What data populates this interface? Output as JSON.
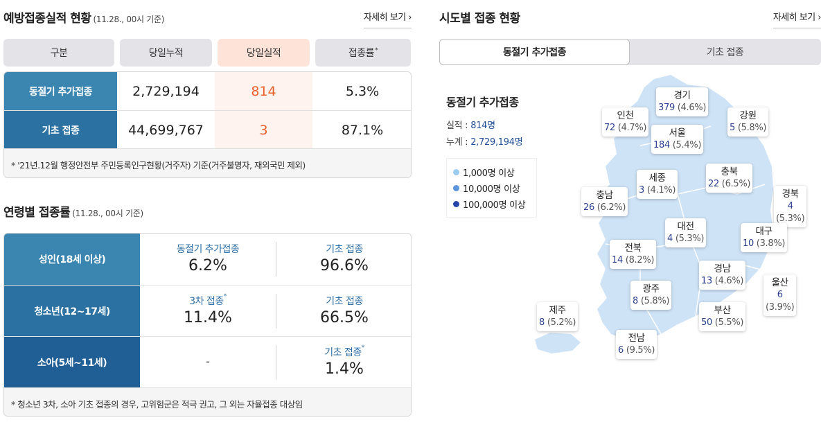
{
  "perf": {
    "title": "예방접종실적 현황",
    "basis": "(11.28., 00시 기준)",
    "more": "자세히 보기",
    "headers": {
      "category": "구분",
      "cumulative": "당일누적",
      "daily": "당일실적",
      "rate": "접종률",
      "rate_mark": "*"
    },
    "rows": [
      {
        "label": "동절기 추가접종",
        "cumulative": "2,729,194",
        "daily": "814",
        "rate": "5.3%"
      },
      {
        "label": "기초 접종",
        "cumulative": "44,699,767",
        "daily": "3",
        "rate": "87.1%"
      }
    ],
    "note": "* '21년.12월 행정안전부 주민등록인구현황(거주자) 기준(거주불명자, 재외국민 제외)"
  },
  "age": {
    "title": "연령별 접종률",
    "basis": "(11.28., 00시 기준)",
    "rows": [
      {
        "label": "성인(18세 이상)",
        "c1_key": "동절기 추가접종",
        "c1_mark": "",
        "c1_val": "6.2%",
        "c2_key": "기초 접종",
        "c2_mark": "",
        "c2_val": "96.6%"
      },
      {
        "label": "청소년(12~17세)",
        "c1_key": "3차 접종",
        "c1_mark": "*",
        "c1_val": "11.4%",
        "c2_key": "기초 접종",
        "c2_mark": "",
        "c2_val": "66.5%"
      },
      {
        "label": "소아(5세~11세)",
        "c1_dash": "-",
        "c2_key": "기초 접종",
        "c2_mark": "*",
        "c2_val": "1.4%"
      }
    ],
    "note": "* 청소년 3차, 소아 기초 접종의 경우, 고위험군은 적극 권고, 그 외는 자율접종 대상임"
  },
  "region": {
    "title": "시도별 접종 현황",
    "more": "자세히 보기",
    "tabs": [
      "동절기 추가접종",
      "기초 접종"
    ],
    "active_tab": 0,
    "info_title": "동절기 추가접종",
    "performance_label": "실적 :",
    "performance_value": "814명",
    "total_label": "누계 :",
    "total_value": "2,729,194명",
    "legend": [
      {
        "label": "1,000명 이상",
        "color": "#9ccbf0"
      },
      {
        "label": "10,000명 이상",
        "color": "#5b95dc"
      },
      {
        "label": "100,000명 이상",
        "color": "#2546a8"
      }
    ],
    "map_color": "#cfe3f7",
    "regions": [
      {
        "name": "경기",
        "count": "379",
        "pct": "(4.6%)"
      },
      {
        "name": "인천",
        "count": "72",
        "pct": "(4.7%)"
      },
      {
        "name": "강원",
        "count": "5",
        "pct": "(5.8%)"
      },
      {
        "name": "서울",
        "count": "184",
        "pct": "(5.4%)"
      },
      {
        "name": "세종",
        "count": "3",
        "pct": "(4.1%)"
      },
      {
        "name": "충북",
        "count": "22",
        "pct": "(6.5%)"
      },
      {
        "name": "충남",
        "count": "26",
        "pct": "(6.2%)"
      },
      {
        "name": "경북",
        "count": "4",
        "pct": "(5.3%)"
      },
      {
        "name": "대전",
        "count": "4",
        "pct": "(5.3%)"
      },
      {
        "name": "대구",
        "count": "10",
        "pct": "(3.8%)"
      },
      {
        "name": "전북",
        "count": "14",
        "pct": "(8.2%)"
      },
      {
        "name": "경남",
        "count": "13",
        "pct": "(4.6%)"
      },
      {
        "name": "울산",
        "count": "6",
        "pct": "(3.9%)"
      },
      {
        "name": "광주",
        "count": "8",
        "pct": "(5.8%)"
      },
      {
        "name": "제주",
        "count": "8",
        "pct": "(5.2%)"
      },
      {
        "name": "부산",
        "count": "50",
        "pct": "(5.5%)"
      },
      {
        "name": "전남",
        "count": "6",
        "pct": "(9.5%)"
      }
    ]
  }
}
